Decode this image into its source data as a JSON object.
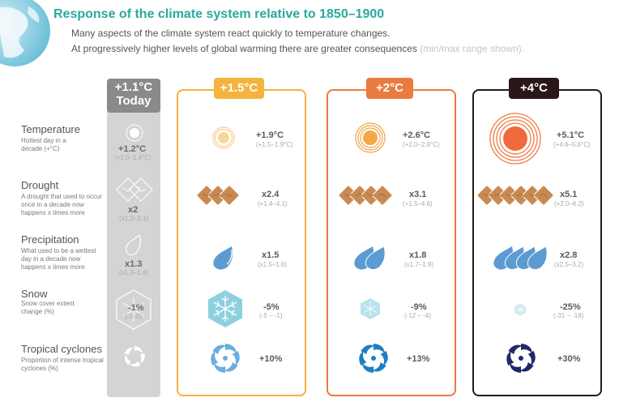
{
  "title": "Response of the climate system relative to 1850–1900",
  "subtitle_line1": "Many aspects of the climate system react quickly to temperature changes.",
  "subtitle_line2_main": "At progressively higher levels of global warming there are greater consequences ",
  "subtitle_line2_hint": "(min/max range shown).",
  "levels": {
    "today": {
      "label_line1": "+1.1°C",
      "label_line2": "Today",
      "color": "#8a8a8a"
    },
    "w15": {
      "label": "+1.5°C",
      "color": "#f3b33d"
    },
    "w2": {
      "label": "+2°C",
      "color": "#ea7b3e"
    },
    "w4": {
      "label": "+4°C",
      "color": "#2a1717"
    }
  },
  "rows": {
    "temperature": {
      "name": "Temperature",
      "desc": "Hottest day in a decade (+°C)",
      "today": {
        "value": "+1.2°C",
        "range": "(+1.0–1.4°C)"
      },
      "w15": {
        "value": "+1.9°C",
        "range": "(+1.5–1.9°C)"
      },
      "w2": {
        "value": "+2.6°C",
        "range": "(+2.0–2.8°C)"
      },
      "w4": {
        "value": "+5.1°C",
        "range": "(+4.6–5.6°C)"
      }
    },
    "drought": {
      "name": "Drought",
      "desc": "A drought that used to occur once in a decade now happens x times more",
      "today": {
        "value": "x2",
        "range": "(x1.2–3.1)"
      },
      "w15": {
        "value": "x2.4",
        "range": "(+1.4–4.1)"
      },
      "w2": {
        "value": "x3.1",
        "range": "(+1.5–4.6)"
      },
      "w4": {
        "value": "x5.1",
        "range": "(+2.0–6.2)"
      }
    },
    "precipitation": {
      "name": "Precipitation",
      "desc": "What used to be a wettest day in a decade now happens x times more",
      "today": {
        "value": "x1.3",
        "range": "(x1.3–1.4)"
      },
      "w15": {
        "value": "x1.5",
        "range": "(x1.5–1.6)"
      },
      "w2": {
        "value": "x1.8",
        "range": "(x1.7–1.9)"
      },
      "w4": {
        "value": "x2.8",
        "range": "(x2.5–3.2)"
      }
    },
    "snow": {
      "name": "Snow",
      "desc": "Snow cover extent change (%)",
      "today": {
        "value": "-1%",
        "range": "(-2–0)"
      },
      "w15": {
        "value": "-5%",
        "range": "(-5 – -1)"
      },
      "w2": {
        "value": "-9%",
        "range": "(-12 – -4)"
      },
      "w4": {
        "value": "-25%",
        "range": "(-31 – -18)"
      }
    },
    "cyclones": {
      "name": "Tropical cyclones",
      "desc": "Proportion of intense tropical cyclones (%)",
      "w15": {
        "value": "+10%"
      },
      "w2": {
        "value": "+13%"
      },
      "w4": {
        "value": "+30%"
      }
    }
  },
  "icons": {
    "globe": "globe-icon",
    "sun": "sun-icon",
    "cracked_earth": "cracked-earth-icon",
    "raindrop": "raindrop-icon",
    "snowflake": "snowflake-icon",
    "cyclone": "cyclone-icon"
  },
  "colors": {
    "title": "#2aa8a0",
    "sun_today": "#ffffff",
    "sun_15": "#f6c36b",
    "sun_2": "#f2a53e",
    "sun_4": "#ee6a3c",
    "drought": "#c98a52",
    "rain": "#5b9bd2",
    "snow": "#8ed0e0",
    "cyclone_15": "#6aaede",
    "cyclone_2": "#1e7fc2",
    "cyclone_4": "#1e2a6a"
  }
}
